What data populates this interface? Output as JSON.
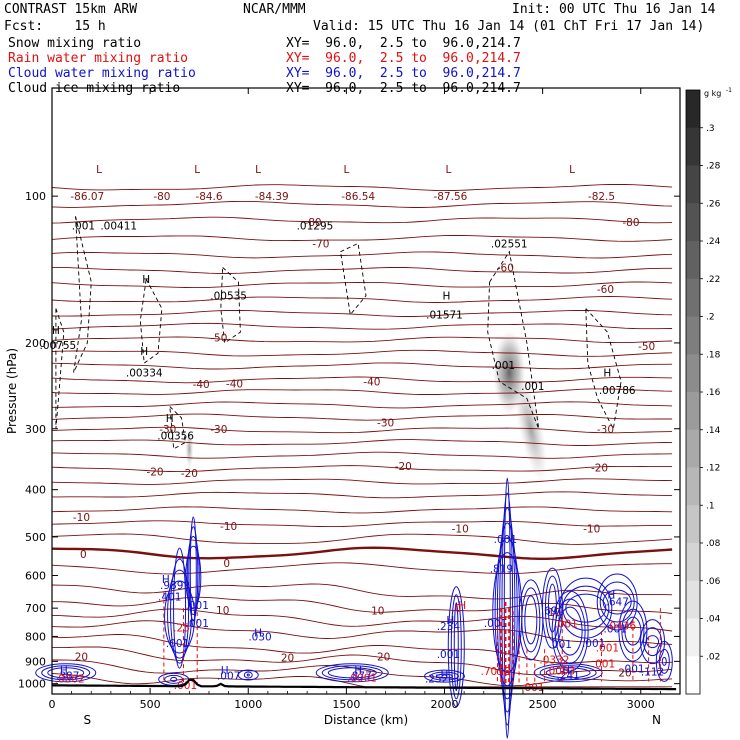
{
  "header": {
    "model": "CONTRAST 15km ARW",
    "org": "NCAR/MMM",
    "init": "Init: 00 UTC Thu 16 Jan 14",
    "fcst": "Fcst:    15 h",
    "valid": "Valid: 15 UTC Thu 16 Jan 14 (01 ChT Fri 17 Jan 14)"
  },
  "legend": [
    {
      "label": "Snow mixing ratio",
      "xy": "XY=  96.0,  2.5 to  96.0,214.7",
      "color": "#000000"
    },
    {
      "label": "Rain water mixing ratio",
      "xy": "XY=  96.0,  2.5 to  96.0,214.7",
      "color": "#e01010"
    },
    {
      "label": "Cloud water mixing ratio",
      "xy": "XY=  96.0,  2.5 to  96.0,214.7",
      "color": "#1010d0"
    },
    {
      "label": "Cloud ice mixing ratio",
      "xy": "XY=  96.0,  2.5 to  96.0,214.7",
      "color": "#000000"
    }
  ],
  "colorbar": {
    "unit": "g kg",
    "unit_sup": "-1",
    "ticks": [
      ".3",
      ".28",
      ".26",
      ".24",
      ".22",
      ".2",
      ".18",
      ".16",
      ".14",
      ".12",
      ".1",
      ".08",
      ".06",
      ".04",
      ".02"
    ]
  },
  "chart_data": {
    "type": "cross-section",
    "xlabel": "Distance (km)",
    "ylabel": "Pressure (hPa)",
    "xlim": [
      0,
      3200
    ],
    "ylim": [
      1050,
      60
    ],
    "y_scale": "log",
    "x_ticks": [
      "0",
      "500",
      "1000",
      "1500",
      "2000",
      "2500",
      "3000"
    ],
    "x_tick_values": [
      0,
      500,
      1000,
      1500,
      2000,
      2500,
      3000
    ],
    "y_ticks": [
      "100",
      "200",
      "300",
      "400",
      "500",
      "600",
      "700",
      "800",
      "900",
      "1000"
    ],
    "y_tick_values": [
      100,
      200,
      300,
      400,
      500,
      600,
      700,
      800,
      900,
      1000
    ],
    "left_end_label": "S",
    "right_end_label": "N",
    "temperature_contours_C": {
      "color": "#7a1010",
      "labels": [
        {
          "text": "-80",
          "x": 560,
          "p": 100
        },
        {
          "text": "-80",
          "x": 1330,
          "p": 113
        },
        {
          "text": "-80",
          "x": 2950,
          "p": 113
        },
        {
          "text": "-70",
          "x": 1370,
          "p": 125
        },
        {
          "text": "-60",
          "x": 2310,
          "p": 140
        },
        {
          "text": "-60",
          "x": 2820,
          "p": 155
        },
        {
          "text": "-50",
          "x": 850,
          "p": 195
        },
        {
          "text": "-50",
          "x": 3030,
          "p": 203
        },
        {
          "text": "-40",
          "x": 760,
          "p": 243
        },
        {
          "text": "-40",
          "x": 930,
          "p": 242
        },
        {
          "text": "-40",
          "x": 1630,
          "p": 240
        },
        {
          "text": "-30",
          "x": 590,
          "p": 300
        },
        {
          "text": "-30",
          "x": 850,
          "p": 300
        },
        {
          "text": "-30",
          "x": 1700,
          "p": 291
        },
        {
          "text": "-30",
          "x": 2820,
          "p": 300
        },
        {
          "text": "-20",
          "x": 525,
          "p": 367
        },
        {
          "text": "-20",
          "x": 700,
          "p": 370
        },
        {
          "text": "-20",
          "x": 1790,
          "p": 358
        },
        {
          "text": "-20",
          "x": 2790,
          "p": 360
        },
        {
          "text": "-10",
          "x": 150,
          "p": 455
        },
        {
          "text": "-10",
          "x": 900,
          "p": 475
        },
        {
          "text": "-10",
          "x": 2080,
          "p": 480
        },
        {
          "text": "-10",
          "x": 2750,
          "p": 480
        },
        {
          "text": "0",
          "x": 160,
          "p": 542
        },
        {
          "text": "0",
          "x": 890,
          "p": 565
        },
        {
          "text": "10",
          "x": 870,
          "p": 706
        },
        {
          "text": "10",
          "x": 1660,
          "p": 708
        },
        {
          "text": "10",
          "x": 2560,
          "p": 712
        },
        {
          "text": "20",
          "x": 150,
          "p": 880
        },
        {
          "text": "20",
          "x": 1200,
          "p": 884
        },
        {
          "text": "20",
          "x": 1690,
          "p": 880
        },
        {
          "text": "20",
          "x": 2920,
          "p": 948
        }
      ]
    },
    "annotations": [
      {
        "text": "L",
        "x": 240,
        "p": 88,
        "color": "#7a1010"
      },
      {
        "text": "-86.07",
        "x": 180,
        "p": 100,
        "color": "#7a1010"
      },
      {
        "text": "L",
        "x": 740,
        "p": 88,
        "color": "#7a1010"
      },
      {
        "text": "-84.6",
        "x": 800,
        "p": 100,
        "color": "#7a1010"
      },
      {
        "text": "L",
        "x": 1050,
        "p": 88,
        "color": "#7a1010"
      },
      {
        "text": "-84.39",
        "x": 1120,
        "p": 100,
        "color": "#7a1010"
      },
      {
        "text": "L",
        "x": 1500,
        "p": 88,
        "color": "#7a1010"
      },
      {
        "text": "-86.54",
        "x": 1560,
        "p": 100,
        "color": "#7a1010"
      },
      {
        "text": "L",
        "x": 2020,
        "p": 88,
        "color": "#7a1010"
      },
      {
        "text": "-87.56",
        "x": 2030,
        "p": 100,
        "color": "#7a1010"
      },
      {
        "text": "L",
        "x": 2650,
        "p": 88,
        "color": "#7a1010"
      },
      {
        "text": "-82.5",
        "x": 2800,
        "p": 100,
        "color": "#7a1010"
      },
      {
        "text": ".001",
        "x": 160,
        "p": 115,
        "color": "#000000"
      },
      {
        "text": ".00411",
        "x": 340,
        "p": 115,
        "color": "#000000"
      },
      {
        "text": ".01295",
        "x": 1340,
        "p": 115,
        "color": "#000000"
      },
      {
        "text": ".02551",
        "x": 2330,
        "p": 125,
        "color": "#000000"
      },
      {
        "text": "H",
        "x": 480,
        "p": 148,
        "color": "#000000"
      },
      {
        "text": ".00535",
        "x": 900,
        "p": 160,
        "color": "#000000"
      },
      {
        "text": "H",
        "x": 2010,
        "p": 160,
        "color": "#000000"
      },
      {
        "text": ".01571",
        "x": 2000,
        "p": 175,
        "color": "#000000"
      },
      {
        "text": "H",
        "x": 20,
        "p": 188,
        "color": "#000000"
      },
      {
        "text": ".00755",
        "x": 30,
        "p": 202,
        "color": "#000000"
      },
      {
        "text": "H",
        "x": 470,
        "p": 208,
        "color": "#000000"
      },
      {
        "text": ".00334",
        "x": 470,
        "p": 230,
        "color": "#000000"
      },
      {
        "text": ".001",
        "x": 2300,
        "p": 222,
        "color": "#000000"
      },
      {
        "text": ".001",
        "x": 2450,
        "p": 245,
        "color": "#000000"
      },
      {
        "text": "H",
        "x": 2830,
        "p": 230,
        "color": "#000000"
      },
      {
        "text": ".00786",
        "x": 2880,
        "p": 250,
        "color": "#000000"
      },
      {
        "text": "H",
        "x": 600,
        "p": 285,
        "color": "#000000"
      },
      {
        "text": ".00356",
        "x": 630,
        "p": 310,
        "color": "#000000"
      },
      {
        "text": ".001",
        "x": 2310,
        "p": 505,
        "color": "#1010d0"
      },
      {
        "text": ".819",
        "x": 2290,
        "p": 580,
        "color": "#1010d0"
      },
      {
        "text": "H",
        "x": 580,
        "p": 610,
        "color": "#1010d0"
      },
      {
        "text": ".989",
        "x": 610,
        "p": 627,
        "color": "#1010d0"
      },
      {
        "text": ".401",
        "x": 600,
        "p": 662,
        "color": "#1010d0"
      },
      {
        "text": "H",
        "x": 2850,
        "p": 657,
        "color": "#1010d0"
      },
      {
        "text": ".647",
        "x": 2880,
        "p": 678,
        "color": "#1010d0"
      },
      {
        "text": ".001",
        "x": 740,
        "p": 690,
        "color": "#1010d0"
      },
      {
        "text": ".694",
        "x": 2550,
        "p": 708,
        "color": "#1010d0"
      },
      {
        "text": ".001",
        "x": 740,
        "p": 750,
        "color": "#1010d0"
      },
      {
        "text": ".001",
        "x": 2260,
        "p": 750,
        "color": "#1010d0"
      },
      {
        "text": "H",
        "x": 2030,
        "p": 740,
        "color": "#1010d0"
      },
      {
        "text": ".234",
        "x": 2020,
        "p": 762,
        "color": "#1010d0"
      },
      {
        "text": ".001",
        "x": 2870,
        "p": 770,
        "color": "#1010d0"
      },
      {
        "text": "H",
        "x": 1050,
        "p": 785,
        "color": "#1010d0"
      },
      {
        "text": ".030",
        "x": 1060,
        "p": 800,
        "color": "#1010d0"
      },
      {
        "text": ".001",
        "x": 640,
        "p": 825,
        "color": "#1010d0"
      },
      {
        "text": ".001",
        "x": 2760,
        "p": 825,
        "color": "#1010d0"
      },
      {
        "text": ".001",
        "x": 2590,
        "p": 830,
        "color": "#1010d0"
      },
      {
        "text": ".001",
        "x": 2020,
        "p": 870,
        "color": "#1010d0"
      },
      {
        "text": "H",
        "x": 60,
        "p": 938,
        "color": "#1010d0"
      },
      {
        "text": ".387",
        "x": 80,
        "p": 962,
        "color": "#1010d0"
      },
      {
        "text": "H",
        "x": 880,
        "p": 938,
        "color": "#1010d0"
      },
      {
        "text": ".007",
        "x": 900,
        "p": 962,
        "color": "#1010d0"
      },
      {
        "text": "H",
        "x": 1560,
        "p": 938,
        "color": "#1010d0"
      },
      {
        "text": ".877",
        "x": 1570,
        "p": 962,
        "color": "#1010d0"
      },
      {
        "text": "H",
        "x": 2000,
        "p": 955,
        "color": "#1010d0"
      },
      {
        "text": ".252",
        "x": 1960,
        "p": 977,
        "color": "#1010d0"
      },
      {
        "text": "H",
        "x": 2620,
        "p": 938,
        "color": "#1010d0"
      },
      {
        "text": ".241",
        "x": 2630,
        "p": 960,
        "color": "#1010d0"
      },
      {
        "text": ".001",
        "x": 2960,
        "p": 930,
        "color": "#1010d0"
      },
      {
        "text": ".112",
        "x": 3060,
        "p": 945,
        "color": "#1010d0"
      },
      {
        "text": "H",
        "x": 2090,
        "p": 690,
        "color": "#e01010"
      },
      {
        "text": ".0",
        "x": 2060,
        "p": 700,
        "color": "#e01010"
      },
      {
        "text": ".001",
        "x": 2620,
        "p": 752,
        "color": "#e01010"
      },
      {
        "text": ".0436",
        "x": 2900,
        "p": 760,
        "color": "#e01010"
      },
      {
        "text": ".0332",
        "x": 2560,
        "p": 892,
        "color": "#e01010"
      },
      {
        "text": ".001",
        "x": 2810,
        "p": 910,
        "color": "#e01010"
      },
      {
        "text": ".7058",
        "x": 2260,
        "p": 942,
        "color": "#e01010"
      },
      {
        "text": ".0003",
        "x": 2590,
        "p": 940,
        "color": "#e01010"
      },
      {
        "text": ".001",
        "x": 2830,
        "p": 842,
        "color": "#e01010"
      },
      {
        "text": ".0002",
        "x": 90,
        "p": 975,
        "color": "#e01010"
      },
      {
        "text": ".0001",
        "x": 1580,
        "p": 972,
        "color": "#e01010"
      },
      {
        "text": ".001",
        "x": 680,
        "p": 1007,
        "color": "#e01010"
      },
      {
        "text": ".001",
        "x": 2450,
        "p": 1017,
        "color": "#e01010"
      },
      {
        "text": ".25",
        "x": 660,
        "p": 767,
        "color": "#e01010"
      }
    ]
  }
}
